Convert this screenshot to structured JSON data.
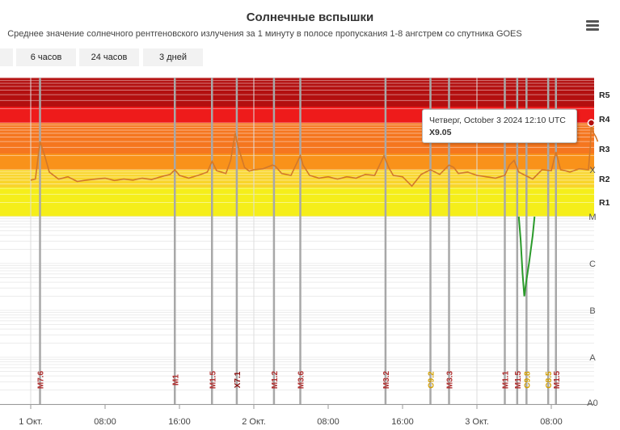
{
  "header": {
    "title": "Солнечные вспышки",
    "subtitle": "Среднее значение солнечного рентгеновского излучения за 1 минуту в полосе пропускания 1-8 ангстрем со спутника GOES"
  },
  "range_buttons": [
    "6 часов",
    "24 часов",
    "3 дней"
  ],
  "tooltip": {
    "line1": "Четверг, October 3 2024 12:10 UTC",
    "line2": "X9.05"
  },
  "colors": {
    "line": "#d2782a",
    "a_class_line": "#2a9a2a",
    "flare_marker": "#a8a8a8",
    "m_label": "#b03030",
    "c_label": "#d4a000",
    "x_label": "#8a0f0f"
  },
  "chart_data": {
    "type": "line",
    "x_axis": "time (UTC)",
    "y_axis": "flare class scale (log flux)",
    "xlim": [
      "2024-10-01 00:00",
      "2024-10-03 14:00"
    ],
    "ylim": [
      "A0",
      "X10"
    ],
    "x_ticks": [
      "1 Окт.",
      "08:00",
      "16:00",
      "2 Окт.",
      "08:00",
      "16:00",
      "3 Окт.",
      "08:00"
    ],
    "y_class_labels": [
      "A0",
      "A",
      "B",
      "C",
      "M",
      "X"
    ],
    "radio_blackout_labels": [
      "R1",
      "R2",
      "R3",
      "R4",
      "R5"
    ],
    "flare_events": [
      {
        "time": "2024-10-01 01:00",
        "label": "M7.6"
      },
      {
        "time": "2024-10-01 15:30",
        "label": "M1"
      },
      {
        "time": "2024-10-01 19:30",
        "label": "M1.5"
      },
      {
        "time": "2024-10-01 22:10",
        "label": "X7.1"
      },
      {
        "time": "2024-10-02 02:10",
        "label": "M1.2"
      },
      {
        "time": "2024-10-02 05:00",
        "label": "M3.6"
      },
      {
        "time": "2024-10-02 14:10",
        "label": "M3.2"
      },
      {
        "time": "2024-10-02 19:00",
        "label": "C9.2"
      },
      {
        "time": "2024-10-02 21:00",
        "label": "M3.3"
      },
      {
        "time": "2024-10-03 03:00",
        "label": "M1.1"
      },
      {
        "time": "2024-10-03 04:20",
        "label": "M1.5"
      },
      {
        "time": "2024-10-03 05:20",
        "label": "C9.8"
      },
      {
        "time": "2024-10-03 07:40",
        "label": "C8.5"
      },
      {
        "time": "2024-10-03 08:30",
        "label": "M1.5"
      }
    ],
    "series": [
      {
        "values": [
          [
            0,
            4.78
          ],
          [
            0.5,
            4.8
          ],
          [
            1,
            5.6
          ],
          [
            1.5,
            5.3
          ],
          [
            2,
            4.95
          ],
          [
            3,
            4.8
          ],
          [
            4,
            4.85
          ],
          [
            5,
            4.75
          ],
          [
            6,
            4.78
          ],
          [
            7,
            4.8
          ],
          [
            8,
            4.82
          ],
          [
            9,
            4.77
          ],
          [
            10,
            4.8
          ],
          [
            11,
            4.78
          ],
          [
            12,
            4.82
          ],
          [
            13,
            4.79
          ],
          [
            14,
            4.85
          ],
          [
            15,
            4.9
          ],
          [
            15.5,
            5.0
          ],
          [
            16,
            4.88
          ],
          [
            17,
            4.82
          ],
          [
            18,
            4.88
          ],
          [
            19,
            4.95
          ],
          [
            19.5,
            5.18
          ],
          [
            20,
            4.98
          ],
          [
            21,
            4.92
          ],
          [
            21.5,
            5.2
          ],
          [
            22,
            5.78
          ],
          [
            22.3,
            5.5
          ],
          [
            23,
            5.05
          ],
          [
            23.5,
            4.97
          ],
          [
            24,
            5.0
          ],
          [
            25,
            5.02
          ],
          [
            26,
            5.1
          ],
          [
            26.3,
            5.08
          ],
          [
            27,
            4.92
          ],
          [
            28,
            4.88
          ],
          [
            29,
            5.3
          ],
          [
            29.3,
            5.1
          ],
          [
            30,
            4.88
          ],
          [
            31,
            4.82
          ],
          [
            32,
            4.85
          ],
          [
            33,
            4.8
          ],
          [
            34,
            4.85
          ],
          [
            35,
            4.82
          ],
          [
            36,
            4.9
          ],
          [
            37,
            4.88
          ],
          [
            38,
            5.3
          ],
          [
            38.5,
            5.05
          ],
          [
            39,
            4.88
          ],
          [
            40,
            4.85
          ],
          [
            41,
            4.65
          ],
          [
            42,
            4.9
          ],
          [
            43,
            5.0
          ],
          [
            44,
            4.9
          ],
          [
            45,
            5.1
          ],
          [
            45.5,
            5.05
          ],
          [
            46,
            4.92
          ],
          [
            47,
            4.95
          ],
          [
            48,
            4.88
          ],
          [
            49,
            4.85
          ],
          [
            50,
            4.82
          ],
          [
            51,
            4.88
          ],
          [
            51.5,
            5.1
          ],
          [
            52,
            5.2
          ],
          [
            52.5,
            4.95
          ],
          [
            53,
            4.9
          ],
          [
            53.5,
            4.85
          ],
          [
            54,
            4.8
          ],
          [
            55,
            5.0
          ],
          [
            56,
            4.98
          ],
          [
            56.5,
            5.38
          ],
          [
            57,
            5.0
          ],
          [
            57.5,
            4.98
          ],
          [
            58,
            4.95
          ],
          [
            59,
            5.02
          ],
          [
            60,
            5.0
          ],
          [
            60.2,
            5.5
          ],
          [
            60.3,
            6.0
          ],
          [
            60.5,
            5.8
          ],
          [
            60.8,
            5.7
          ],
          [
            61,
            5.6
          ]
        ]
      },
      {
        "name": "",
        "values": [
          [
            52.5,
            4.0
          ],
          [
            52.7,
            3.5
          ],
          [
            52.9,
            2.8
          ],
          [
            53.1,
            2.3
          ],
          [
            53.3,
            2.6
          ],
          [
            53.6,
            3.0
          ],
          [
            54,
            3.6
          ],
          [
            54.2,
            4.0
          ]
        ]
      }
    ]
  }
}
